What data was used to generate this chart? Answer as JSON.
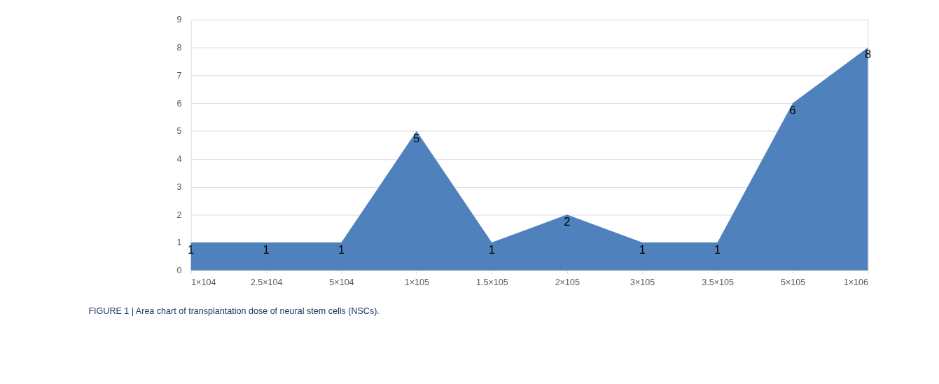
{
  "chart_data": {
    "type": "area",
    "categories": [
      "1×104",
      "2.5×104",
      "5×104",
      "1×105",
      "1.5×105",
      "2×105",
      "3×105",
      "3.5×105",
      "5×105",
      "1×106"
    ],
    "values": [
      1,
      1,
      1,
      5,
      1,
      2,
      1,
      1,
      6,
      8
    ],
    "color": "#4f81bd",
    "ylim": [
      0,
      9
    ],
    "yticks": [
      0,
      1,
      2,
      3,
      4,
      5,
      6,
      7,
      8,
      9
    ],
    "grid": "y",
    "data_labels": true,
    "annotations": [
      "FIGURE 1 | Area chart of transplantation dose of neural stem cells (NSCs)."
    ]
  }
}
